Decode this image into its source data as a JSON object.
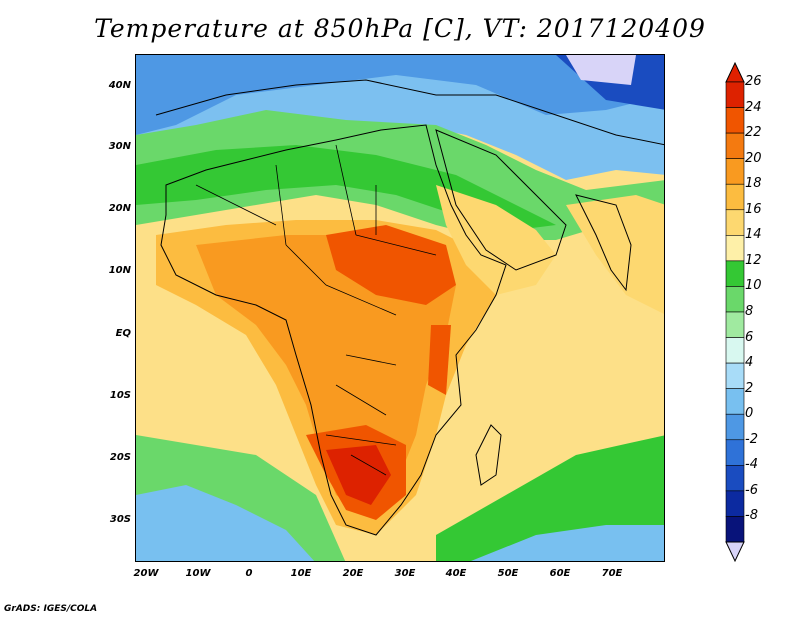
{
  "title": "Temperature at 850hPa [C], VT: 2017120409",
  "credit": "GrADS: IGES/COLA",
  "map": {
    "lat_labels": [
      "40N",
      "30N",
      "20N",
      "10N",
      "EQ",
      "10S",
      "20S",
      "30S"
    ],
    "lon_labels": [
      "20W",
      "10W",
      "0",
      "10E",
      "20E",
      "30E",
      "40E",
      "50E",
      "60E",
      "70E"
    ]
  },
  "colorbar": {
    "labels": [
      "26",
      "24",
      "22",
      "20",
      "18",
      "16",
      "14",
      "12",
      "10",
      "8",
      "6",
      "4",
      "2",
      "0",
      "-2",
      "-4",
      "-6",
      "-8"
    ],
    "colors": [
      "#dd2200",
      "#f05500",
      "#f47a10",
      "#f99a20",
      "#fcbc40",
      "#fdd870",
      "#fef0a8",
      "#34c834",
      "#6ad86a",
      "#a0eaa0",
      "#d8f8f0",
      "#a8dcf8",
      "#78c0f0",
      "#4e98e4",
      "#2f72d8",
      "#1a4cc0",
      "#0c2aa0",
      "#08137a"
    ],
    "top_arrow_color": "#e02000",
    "bottom_arrow_color": "#d8d4f8"
  }
}
